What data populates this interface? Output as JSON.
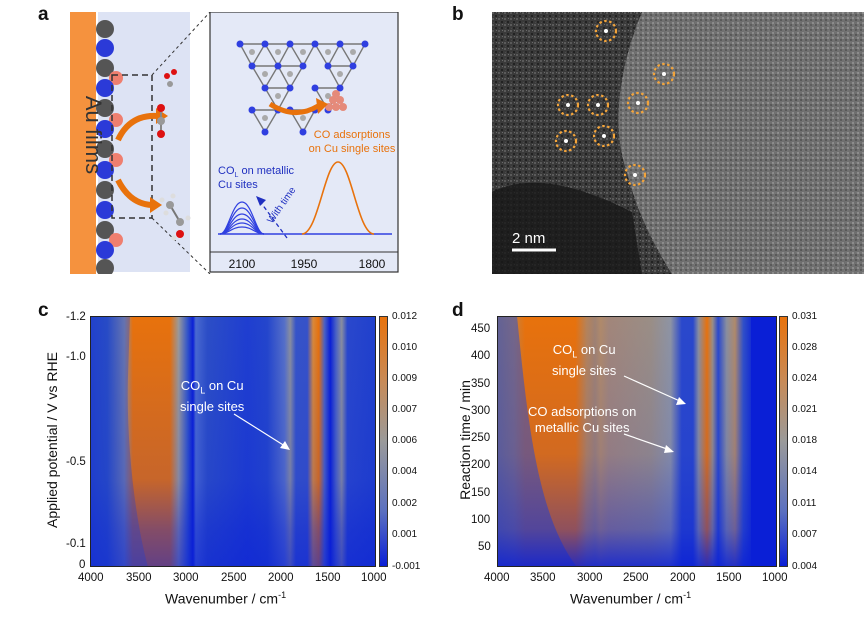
{
  "panels": {
    "a": {
      "label": "a",
      "film_label": "Au films",
      "inset_text_co_single": [
        "CO adsorptions",
        "on Cu single sites"
      ],
      "inset_text_col_metallic_prefix": "CO",
      "inset_text_col_metallic_sub": "L",
      "inset_text_col_metallic_suffix": " on metallic",
      "inset_text_col_metallic_line2": "Cu sites",
      "inset_arrow_label": "With time",
      "inset_xticks": [
        "2100",
        "1950",
        "1800"
      ]
    },
    "b": {
      "label": "b",
      "scale_bar": "2 nm"
    },
    "c": {
      "label": "c",
      "ylabel": "Applied potential / V vs RHE",
      "xlabel": "Wavenumber / cm",
      "xlabel_sup": "-1",
      "xticks": [
        "4000",
        "3500",
        "3000",
        "2500",
        "2000",
        "1500",
        "1000"
      ],
      "yticks": [
        "-1.2",
        "-1.0",
        "-0.5",
        "-0.1",
        "0"
      ],
      "colorbar_ticks": [
        "0.012",
        "0.010",
        "0.009",
        "0.007",
        "0.006",
        "0.004",
        "0.002",
        "0.001",
        "-0.001"
      ],
      "annotation": {
        "prefix": "CO",
        "sub": "L",
        "suffix": " on Cu",
        "line2": "single sites"
      }
    },
    "d": {
      "label": "d",
      "ylabel": "Reaction time / min",
      "xlabel": "Wavenumber / cm",
      "xlabel_sup": "-1",
      "xticks": [
        "4000",
        "3500",
        "3000",
        "2500",
        "2000",
        "1500",
        "1000"
      ],
      "yticks": [
        "450",
        "400",
        "350",
        "300",
        "250",
        "200",
        "150",
        "100",
        "50"
      ],
      "colorbar_ticks": [
        "0.031",
        "0.028",
        "0.024",
        "0.021",
        "0.018",
        "0.014",
        "0.011",
        "0.007",
        "0.004"
      ],
      "annotation1": {
        "prefix": "CO",
        "sub": "L",
        "suffix": " on Cu",
        "line2": "single sites"
      },
      "annotation2": {
        "line1": "CO adsorptions on",
        "line2": "metallic Cu sites"
      }
    }
  },
  "colors": {
    "blue": "#0a1fd6",
    "orange": "#e8720c",
    "gray": "#9a9a9a",
    "inset_bg": "#e4e9f7",
    "au": "#f5923e"
  },
  "chart_data": [
    {
      "type": "heatmap",
      "xlabel": "Wavenumber / cm-1",
      "ylabel": "Applied potential / V vs RHE",
      "xlim": [
        4000,
        1000
      ],
      "ylim": [
        0,
        -1.2
      ],
      "colorbar_range": [
        -0.001,
        0.012
      ]
    },
    {
      "type": "heatmap",
      "xlabel": "Wavenumber / cm-1",
      "ylabel": "Reaction time / min",
      "xlim": [
        4000,
        1000
      ],
      "ylim": [
        20,
        480
      ],
      "colorbar_range": [
        0.004,
        0.031
      ]
    }
  ]
}
